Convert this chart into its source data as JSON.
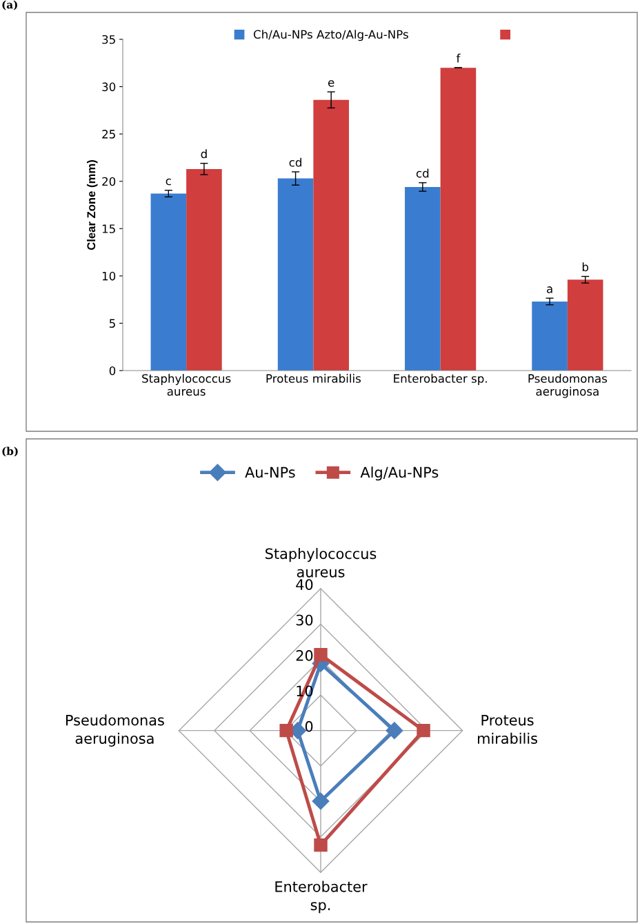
{
  "chart_data": [
    {
      "type": "bar",
      "ylabel": "Clear Zone (mm)",
      "categories": [
        "Staphylococcus\naureus",
        "Proteus mirabilis",
        "Enterobacter sp.",
        "Pseudomonas\naeruginosa"
      ],
      "series": [
        {
          "name": "Ch/Au-NPs Azto/Alg-Au-NPs",
          "color": "#3a7dd0",
          "values": [
            18.7,
            20.3,
            19.4,
            7.3
          ],
          "errors": [
            0.35,
            0.7,
            0.45,
            0.35
          ]
        },
        {
          "color": "#d03e3e",
          "values": [
            21.3,
            28.6,
            32.0,
            9.6
          ],
          "errors": [
            0.6,
            0.85,
            0,
            0.35
          ]
        }
      ],
      "ylim": [
        0,
        35
      ],
      "yticks": [
        0,
        5,
        10,
        15,
        20,
        25,
        30,
        35
      ],
      "grid": false,
      "legend": "top",
      "annotations": [
        "(a)",
        "c",
        "d",
        "cd",
        "e",
        "cd",
        "f",
        "a",
        "b"
      ]
    },
    {
      "type": "radar",
      "categories": [
        "Staphylococcus\naureus",
        "Proteus\nmirabilis",
        "Enterobacter\nsp.",
        "Pseudomonas\naeruginosa"
      ],
      "series": [
        {
          "name": "Au-NPs",
          "color": "#4a7ebb",
          "values": [
            18.9,
            20.8,
            19.9,
            6.5
          ],
          "marker": "diamond"
        },
        {
          "name": "Alg/Au-NPs",
          "color": "#be4b48",
          "values": [
            21.4,
            29.0,
            32.3,
            9.7
          ],
          "marker": "square"
        }
      ],
      "ylim": [
        0,
        40
      ],
      "yticks": [
        0,
        10,
        20,
        30,
        40
      ],
      "grid": true,
      "legend": "top left",
      "annotations": [
        "(b)"
      ]
    }
  ]
}
